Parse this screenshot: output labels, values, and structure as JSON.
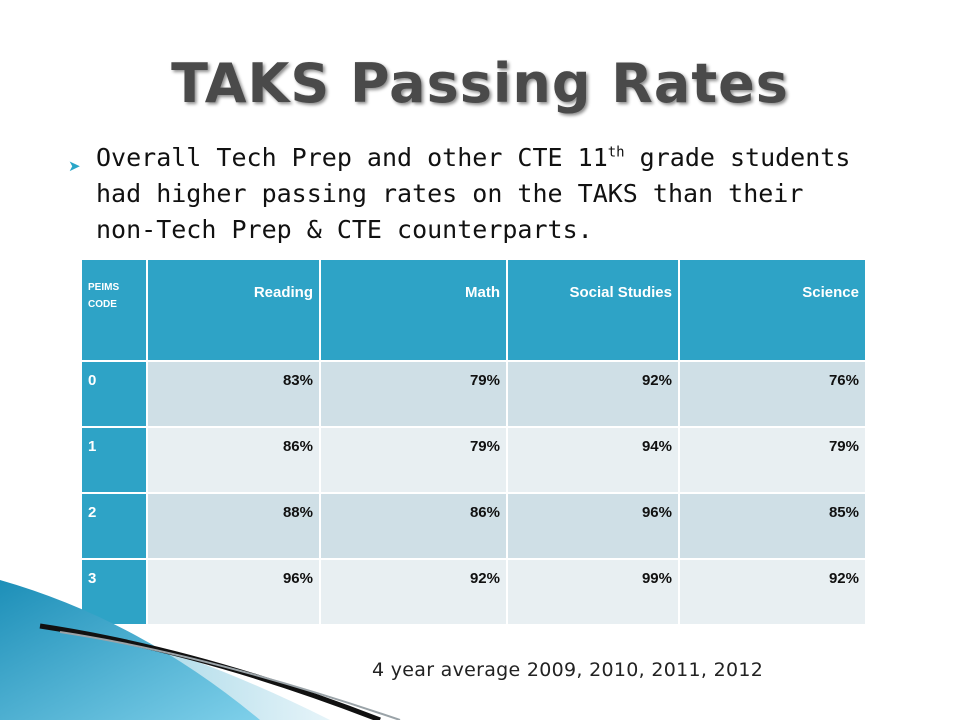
{
  "slide": {
    "title": "TAKS Passing Rates",
    "bullet_before": "Overall Tech Prep and other CTE 11",
    "bullet_sup": "th",
    "bullet_after": " grade students had higher passing rates on the TAKS than their non-Tech Prep & CTE counterparts.",
    "footnote": "4 year average 2009, 2010, 2011, 2012"
  },
  "table": {
    "headers": [
      "PEIMS CODE",
      "Reading",
      "Math",
      "Social Studies",
      "Science"
    ],
    "rows": [
      [
        "0",
        "83%",
        "79%",
        "92%",
        "76%"
      ],
      [
        "1",
        "86%",
        "79%",
        "94%",
        "79%"
      ],
      [
        "2",
        "88%",
        "86%",
        "96%",
        "85%"
      ],
      [
        "3",
        "96%",
        "92%",
        "99%",
        "92%"
      ]
    ]
  },
  "colors": {
    "header_blue": "#2ea3c6",
    "row_dark": "#cfdfe6",
    "row_light": "#e8eff2",
    "title_gray": "#4a4a4a",
    "bullet_accent": "#2aa6c8"
  }
}
